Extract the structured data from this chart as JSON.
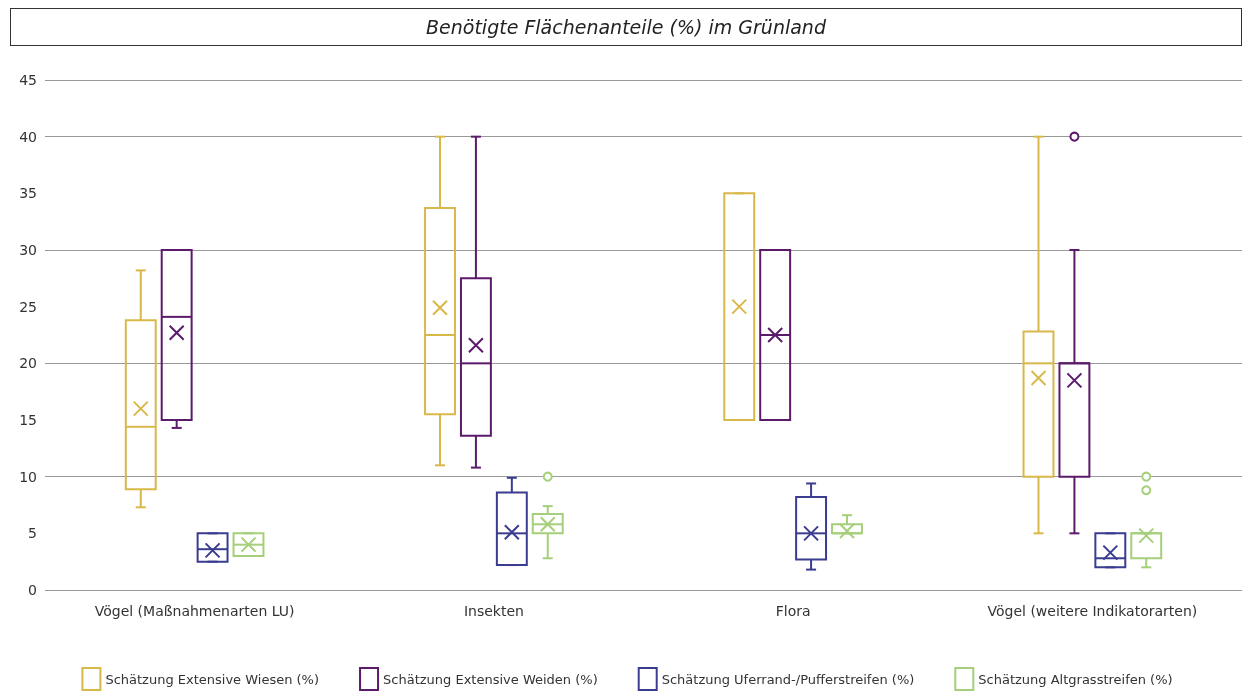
{
  "chart_data": {
    "type": "box",
    "title": "Benötigte Flächenanteile (%) im Grünland",
    "categories": [
      "Vögel (Maßnahmenarten LU)",
      "Insekten",
      "Flora",
      "Vögel (weitere Indikatorarten)"
    ],
    "series": [
      {
        "name": "Schätzung Extensive Wiesen (%)",
        "color": "#d9b84a",
        "boxes": [
          {
            "low": 7.3,
            "q1": 8.9,
            "median": 14.4,
            "q3": 23.8,
            "high": 28.2,
            "mean": 16
          },
          {
            "low": 11,
            "q1": 15.5,
            "median": 22.5,
            "q3": 33.7,
            "high": 40,
            "mean": 24.9
          },
          {
            "low": 15,
            "q1": 15,
            "median": 15,
            "q3": 35,
            "high": 35,
            "mean": 25
          },
          {
            "low": 5,
            "q1": 10,
            "median": 20,
            "q3": 22.8,
            "high": 40,
            "mean": 18.7
          }
        ]
      },
      {
        "name": "Schätzung Extensive Weiden (%)",
        "color": "#5c1a6b",
        "boxes": [
          {
            "low": 14.3,
            "q1": 15,
            "median": 24.1,
            "q3": 30,
            "high": 30,
            "mean": 22.7
          },
          {
            "low": 10.8,
            "q1": 13.6,
            "median": 20,
            "q3": 27.5,
            "high": 40,
            "mean": 21.6
          },
          {
            "low": 15,
            "q1": 15,
            "median": 22.5,
            "q3": 30,
            "high": 30,
            "mean": 22.5
          },
          {
            "low": 5,
            "q1": 10,
            "median": 20,
            "q3": 20,
            "high": 30,
            "mean": 18.5,
            "outliers": [
              40
            ]
          }
        ]
      },
      {
        "name": "Schätzung Uferrand-/Pufferstreifen (%)",
        "color": "#3a3d8f",
        "boxes": [
          {
            "low": 2.5,
            "q1": 2.5,
            "median": 3.6,
            "q3": 5,
            "high": 5,
            "mean": 3.5
          },
          {
            "low": 2.2,
            "q1": 2.2,
            "median": 5,
            "q3": 8.6,
            "high": 9.9,
            "mean": 5.1
          },
          {
            "low": 1.8,
            "q1": 2.7,
            "median": 5,
            "q3": 8.2,
            "high": 9.4,
            "mean": 5
          },
          {
            "low": 2,
            "q1": 2,
            "median": 2.8,
            "q3": 5,
            "high": 5,
            "mean": 3.3
          }
        ]
      },
      {
        "name": "Schätzung Altgrasstreifen (%)",
        "color": "#a5cf7a",
        "boxes": [
          {
            "low": 3,
            "q1": 3,
            "median": 4,
            "q3": 5,
            "high": 5,
            "mean": 4
          },
          {
            "low": 2.8,
            "q1": 5,
            "median": 5.8,
            "q3": 6.7,
            "high": 7.4,
            "mean": 5.8,
            "outliers": [
              10
            ]
          },
          {
            "low": 5,
            "q1": 5,
            "median": 5,
            "q3": 5.8,
            "high": 6.6,
            "mean": 5.2
          },
          {
            "low": 2,
            "q1": 2.8,
            "median": 5,
            "q3": 5,
            "high": 5,
            "mean": 4.8,
            "outliers": [
              8.8,
              10
            ]
          }
        ]
      }
    ],
    "ylim": [
      0,
      45
    ],
    "yticks": [
      0,
      5,
      10,
      15,
      20,
      25,
      30,
      35,
      40,
      45
    ],
    "grid": "y",
    "legend": "bottom"
  }
}
